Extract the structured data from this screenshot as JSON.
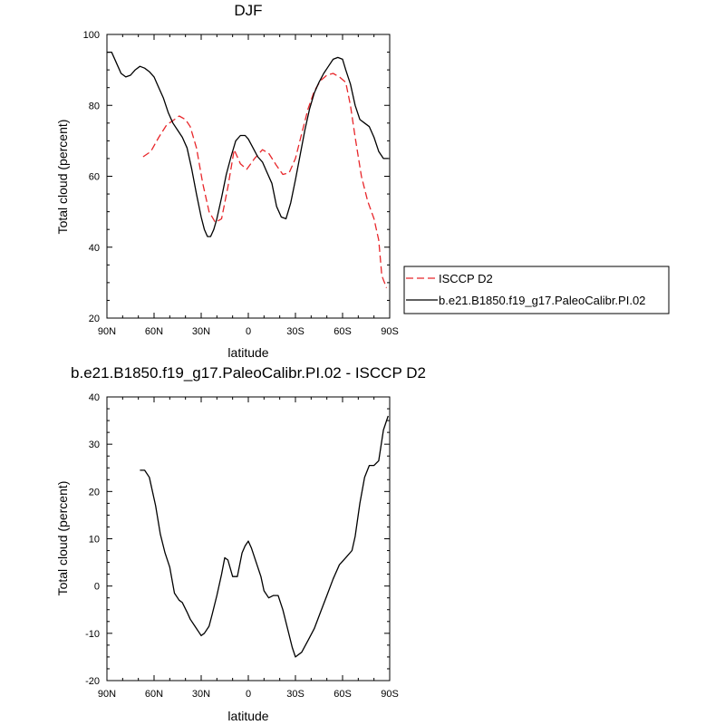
{
  "chart_data": [
    {
      "type": "line",
      "title": "DJF",
      "xlabel": "latitude",
      "ylabel": "Total cloud (percent)",
      "xlim": [
        90,
        -90
      ],
      "ylim": [
        20,
        100
      ],
      "x_ticks": [
        90,
        60,
        30,
        0,
        -30,
        -60,
        -90
      ],
      "x_tick_labels": [
        "90N",
        "60N",
        "30N",
        "0",
        "30S",
        "60S",
        "90S"
      ],
      "y_ticks": [
        20,
        40,
        60,
        80,
        100
      ],
      "y_tick_labels": [
        "20",
        "40",
        "60",
        "80",
        "100"
      ],
      "grid": false,
      "legend_position": "right",
      "series": [
        {
          "name": "ISCCP D2",
          "color": "#e8262a",
          "dash": "dashed",
          "x": [
            67,
            62,
            57,
            52,
            47,
            44,
            40,
            37,
            33,
            29,
            25,
            21,
            17,
            13,
            9,
            5,
            1,
            -4,
            -9,
            -13,
            -18,
            -22,
            -26,
            -30,
            -34,
            -38,
            -42,
            -46,
            -50,
            -54,
            -58,
            -62,
            -65,
            -68,
            -72,
            -76,
            -80,
            -83,
            -85,
            -88
          ],
          "y": [
            65.5,
            67,
            71,
            74.5,
            76,
            77,
            76,
            74,
            68,
            58,
            50,
            47,
            48,
            57,
            67.5,
            63.5,
            62,
            65,
            67.5,
            66.5,
            63,
            60.5,
            61,
            65,
            72,
            79,
            84,
            87,
            88.5,
            89,
            88,
            86.5,
            80,
            71,
            60,
            53,
            48,
            42,
            32,
            28.5
          ]
        },
        {
          "name": "b.e21.B1850.f19_g17.PaleoCalibr.PI.02",
          "color": "#000000",
          "dash": "solid",
          "x": [
            90,
            87,
            84,
            81,
            78,
            75,
            72,
            69,
            66,
            63,
            60,
            57,
            54,
            51,
            48,
            45,
            42,
            39,
            36,
            33,
            30,
            28,
            26,
            24,
            22,
            20,
            17,
            14,
            11,
            8,
            5,
            2,
            0,
            -3,
            -6,
            -9,
            -12,
            -15,
            -18,
            -21,
            -24,
            -27,
            -30,
            -33,
            -36,
            -39,
            -42,
            -45,
            -48,
            -51,
            -54,
            -57,
            -60,
            -62,
            -65,
            -68,
            -71,
            -74,
            -77,
            -80,
            -83,
            -86,
            -89
          ],
          "y": [
            95,
            95,
            92,
            89,
            88,
            88.5,
            90,
            91,
            90.5,
            89.5,
            88,
            85,
            82,
            78,
            75,
            73,
            71,
            68,
            62,
            55,
            48.5,
            45,
            43,
            43,
            45,
            48,
            54,
            60.5,
            65.5,
            70,
            71.5,
            71.5,
            70.5,
            68,
            65.5,
            64,
            61,
            58,
            51.5,
            48.5,
            48,
            52.5,
            59,
            66,
            73,
            79,
            83.5,
            86.5,
            89,
            91,
            93,
            93.5,
            93,
            90,
            86,
            80,
            76,
            75,
            74,
            71,
            67,
            65,
            65
          ]
        }
      ]
    },
    {
      "type": "line",
      "title": "b.e21.B1850.f19_g17.PaleoCalibr.PI.02 - ISCCP D2",
      "xlabel": "latitude",
      "ylabel": "Total cloud (percent)",
      "xlim": [
        90,
        -90
      ],
      "ylim": [
        -20,
        40
      ],
      "x_ticks": [
        90,
        60,
        30,
        0,
        -30,
        -60,
        -90
      ],
      "x_tick_labels": [
        "90N",
        "60N",
        "30N",
        "0",
        "30S",
        "60S",
        "90S"
      ],
      "y_ticks": [
        -20,
        -10,
        0,
        10,
        20,
        30,
        40
      ],
      "y_tick_labels": [
        "-20",
        "-10",
        "0",
        "10",
        "20",
        "30",
        "40"
      ],
      "grid": false,
      "series": [
        {
          "color": "#000000",
          "dash": "solid",
          "x": [
            69,
            66,
            63,
            59,
            56,
            53,
            50,
            47,
            44,
            42,
            39,
            37,
            34,
            31,
            30,
            28,
            25,
            23,
            20,
            17,
            15,
            13,
            10,
            7,
            4,
            2,
            0,
            -2,
            -5,
            -8,
            -10,
            -13,
            -16,
            -19,
            -22,
            -25,
            -28,
            -30,
            -34,
            -38,
            -42,
            -46,
            -50,
            -54,
            -58,
            -62,
            -66,
            -68,
            -71,
            -74,
            -77,
            -80,
            -83,
            -86,
            -89
          ],
          "y": [
            24.5,
            24.5,
            23,
            17,
            11,
            7,
            4,
            -1.5,
            -3,
            -3.5,
            -5.5,
            -7,
            -8.5,
            -10,
            -10.5,
            -10,
            -8.5,
            -6,
            -2,
            2.5,
            6,
            5.5,
            2,
            2,
            7,
            8.5,
            9.5,
            8,
            5,
            2,
            -1,
            -2.5,
            -2,
            -2,
            -5,
            -9,
            -13,
            -15,
            -14,
            -11.5,
            -9,
            -5.5,
            -2,
            1.5,
            4.5,
            6,
            7.5,
            10.5,
            17.5,
            23,
            25.5,
            25.5,
            26.5,
            33,
            36
          ]
        }
      ]
    }
  ]
}
